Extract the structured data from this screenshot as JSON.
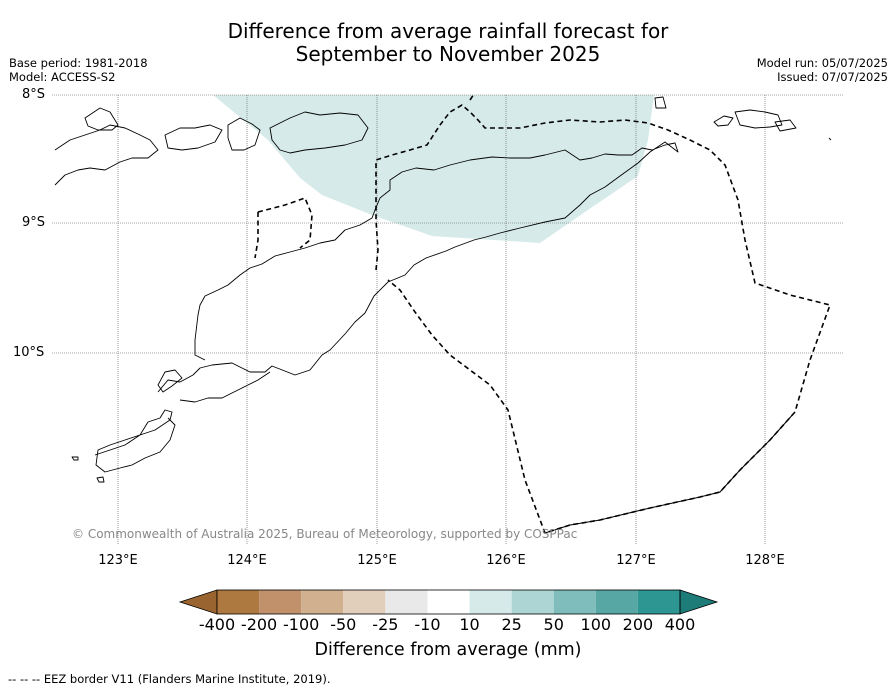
{
  "title": {
    "line1": "Difference from average rainfall forecast for",
    "line2": "September to November 2025"
  },
  "meta": {
    "base_period": "Base period: 1981-2018",
    "model": "Model: ACCESS-S2",
    "model_run": "Model run: 05/07/2025",
    "issued": "Issued: 07/07/2025"
  },
  "axes": {
    "lat_labels": [
      "8°S",
      "9°S",
      "10°S"
    ],
    "lon_labels": [
      "123°E",
      "124°E",
      "125°E",
      "126°E",
      "127°E",
      "128°E"
    ]
  },
  "copyright": "© Commonwealth of Australia 2025, Bureau of Meteorology, supported by COSPPac",
  "colorbar": {
    "title": "Difference from average (mm)",
    "ticks": [
      "-400",
      "-200",
      "-100",
      "-50",
      "-25",
      "-10",
      "10",
      "25",
      "50",
      "100",
      "200",
      "400"
    ],
    "colors": [
      "#9a6430",
      "#ad7941",
      "#c0916a",
      "#d1b090",
      "#e2cfbb",
      "#e9e9e9",
      "#ffffff",
      "#d6ebe9",
      "#acd5d3",
      "#7ebdbb",
      "#57a8a5",
      "#2e9692",
      "#1d7b78"
    ]
  },
  "eez_note": "-- -- -- EEZ border V11 (Flanders Marine Institute, 2019).",
  "forecast_region": {
    "category": "10 to 25 mm",
    "color": "#d6ebe9"
  }
}
